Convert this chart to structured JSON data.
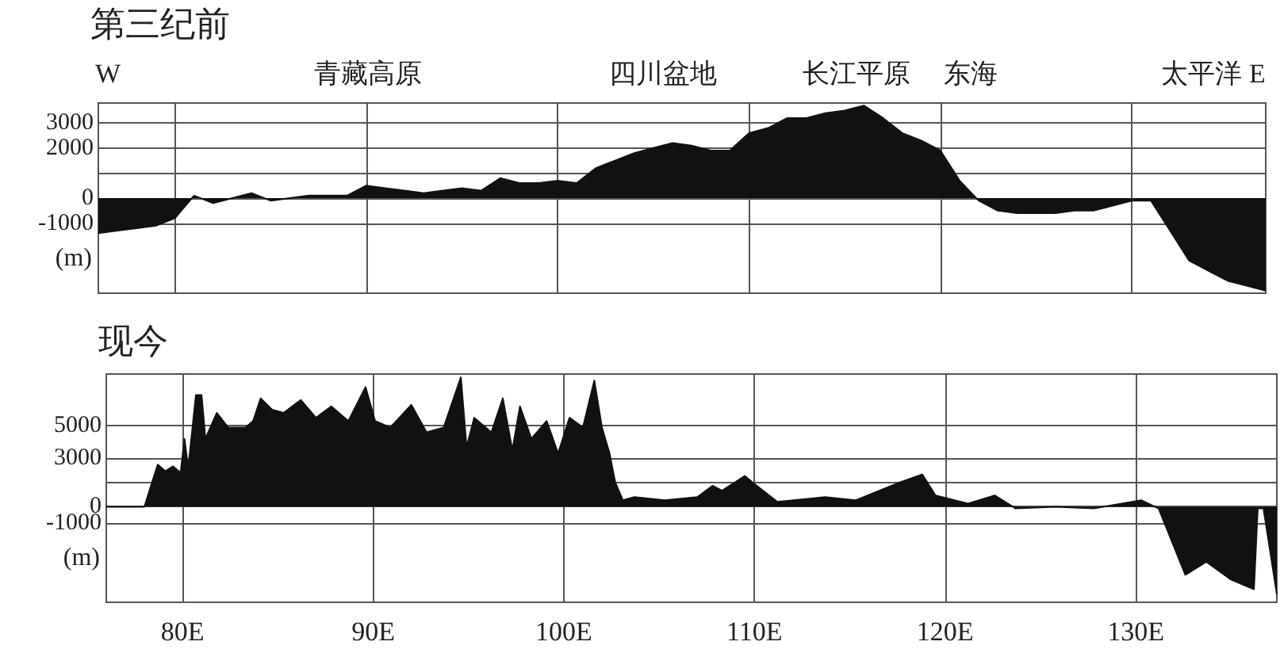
{
  "chart_data": [
    {
      "type": "area",
      "title": "第三纪前",
      "ylabel": "(m)",
      "tick_labels": "y",
      "grid": true,
      "annotations": [
        "W",
        "青藏高原",
        "四川盆地",
        "长江平原",
        "东海",
        "太平洋 E"
      ],
      "categories": [
        null,
        null,
        null,
        null,
        null,
        null,
        null,
        null,
        null,
        null,
        null,
        null,
        null,
        null,
        null,
        null,
        null,
        null,
        null,
        null,
        null,
        null,
        null,
        null,
        null,
        null,
        null,
        null,
        null,
        null,
        null,
        null,
        null,
        null,
        null,
        null,
        null,
        null,
        null,
        null,
        null,
        null,
        null,
        null,
        null,
        null,
        null,
        null,
        null,
        null,
        null,
        null,
        null,
        null,
        null,
        null,
        null,
        null,
        null,
        null,
        null,
        null
      ],
      "ylim": [
        -3800,
        3800
      ],
      "yticks": [
        3000,
        2000,
        {
          "value": 1000,
          "label": null
        },
        0,
        -1000
      ],
      "series": [
        {
          "color": "#111111",
          "values": [
            -1400,
            -1300,
            -1200,
            -1100,
            -800,
            100,
            -200,
            0,
            200,
            -100,
            0,
            100,
            100,
            100,
            500,
            400,
            300,
            200,
            300,
            400,
            300,
            800,
            600,
            600,
            700,
            600,
            1200,
            1500,
            1800,
            2000,
            2200,
            2100,
            1900,
            1900,
            2600,
            2800,
            3200,
            3200,
            3400,
            3500,
            3700,
            3200,
            2600,
            2300,
            1900,
            700,
            -100,
            -500,
            -600,
            -600,
            -600,
            -500,
            -500,
            -300,
            -100,
            -100,
            -1300,
            -2500,
            -2900,
            -3300,
            -3500,
            -3700
          ]
        }
      ]
    },
    {
      "type": "area",
      "title": "现今",
      "ylabel": "(m)",
      "grid": true,
      "xlim": [
        76,
        137.4
      ],
      "xticks": [
        {
          "value": 80,
          "label": "80E"
        },
        {
          "value": 90,
          "label": "90E"
        },
        {
          "value": 100,
          "label": "100E"
        },
        {
          "value": 110,
          "label": "110E"
        },
        {
          "value": 120,
          "label": "120E"
        },
        {
          "value": 130,
          "label": "130E"
        }
      ],
      "ylim": [
        -5900,
        8200
      ],
      "yticks": [
        5000,
        3000,
        {
          "value": 1500,
          "label": null
        },
        0,
        -1000
      ],
      "series": [
        {
          "color": "#111111",
          "x": [
            76,
            78.0,
            78.4,
            78.7,
            79.1,
            79.5,
            79.9,
            80.1,
            80.3,
            80.7,
            81.0,
            81.2,
            81.8,
            82.4,
            83.3,
            83.7,
            84.1,
            84.7,
            85.3,
            86.2,
            87.0,
            87.8,
            88.7,
            89.6,
            90.1,
            90.9,
            92.0,
            92.8,
            93.7,
            94.6,
            94.9,
            95.3,
            96.2,
            96.8,
            97.3,
            97.7,
            98.3,
            99.1,
            99.7,
            100.3,
            101.0,
            101.6,
            102.0,
            102.4,
            102.7,
            103.1,
            103.7,
            105.3,
            107.0,
            107.8,
            108.3,
            109.5,
            109.9,
            111.2,
            113.7,
            115.3,
            117.6,
            118.8,
            119.5,
            121.2,
            122.6,
            123.7,
            125.8,
            127.8,
            130.3,
            131.2,
            132.6,
            133.7,
            135.0,
            136.2,
            136.4,
            136.7,
            137.4
          ],
          "values": [
            0,
            0,
            1500,
            2600,
            2200,
            2500,
            2100,
            4200,
            2400,
            6900,
            6900,
            4200,
            5800,
            4900,
            4900,
            5300,
            6700,
            6000,
            5800,
            6600,
            5500,
            6200,
            5300,
            7400,
            5300,
            4900,
            6300,
            4600,
            4900,
            8000,
            3700,
            5500,
            4600,
            6700,
            3500,
            6200,
            4200,
            5300,
            3300,
            5500,
            4900,
            7800,
            4900,
            3300,
            1500,
            400,
            600,
            400,
            600,
            1300,
            1000,
            1900,
            1500,
            300,
            600,
            400,
            1500,
            2000,
            700,
            200,
            700,
            -100,
            0,
            -100,
            400,
            -100,
            -4200,
            -3400,
            -4500,
            -5100,
            -100,
            -100,
            -5400
          ]
        }
      ]
    }
  ]
}
